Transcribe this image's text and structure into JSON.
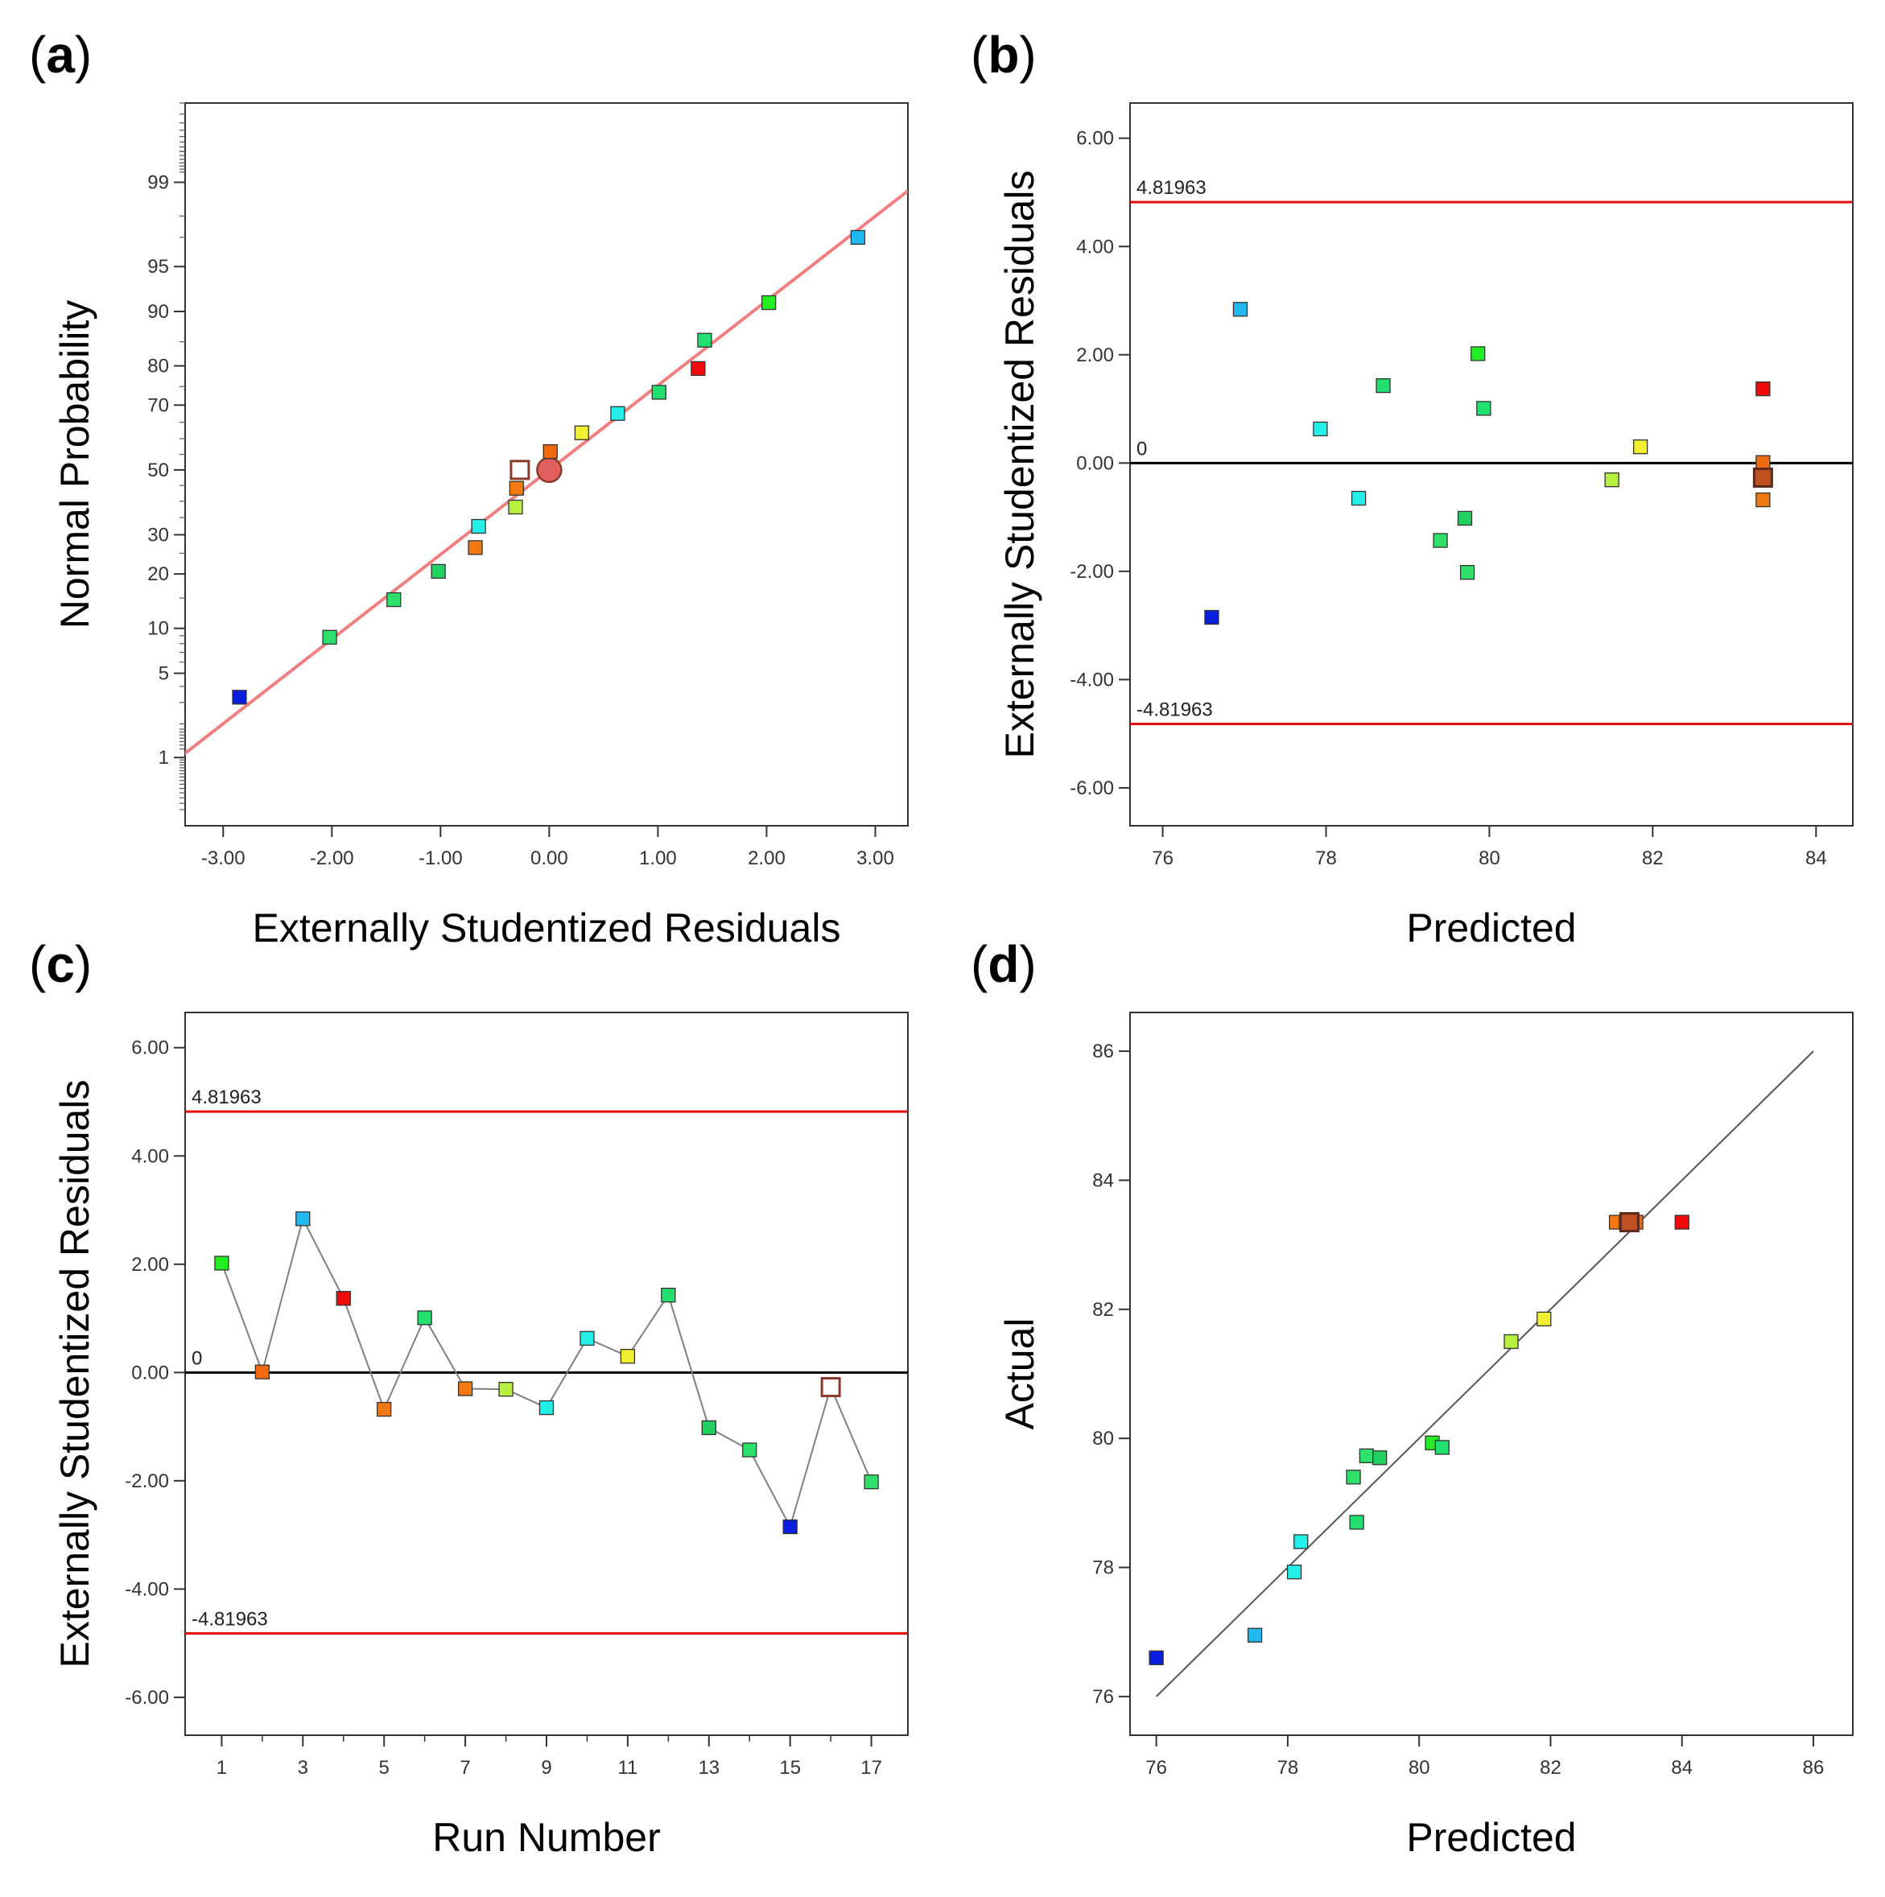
{
  "figure": {
    "panels": [
      "a",
      "b",
      "c",
      "d"
    ]
  },
  "chart_data": [
    {
      "id": "a",
      "type": "scatter",
      "panel_label": "a",
      "title": "",
      "xlabel": "Externally Studentized Residuals",
      "ylabel": "Normal Probability",
      "xlim": [
        -3.35,
        3.3
      ],
      "ylim_probability": [
        0.2,
        99.85
      ],
      "y_scale": "normal-probability",
      "xticks": [
        -3,
        -2,
        -1,
        0,
        1,
        2,
        3
      ],
      "xtick_labels": [
        "-3.00",
        "-2.00",
        "-1.00",
        "0.00",
        "1.00",
        "2.00",
        "3.00"
      ],
      "yticks": [
        1,
        5,
        10,
        20,
        30,
        50,
        70,
        80,
        90,
        95,
        99
      ],
      "ytick_labels": [
        "1",
        "5",
        "10",
        "20",
        "30",
        "50",
        "70",
        "80",
        "90",
        "95",
        "99"
      ],
      "fit_line": {
        "x": [
          -3.4,
          3.3
        ],
        "y": [
          1.0,
          98.8
        ],
        "color": "#f08080"
      },
      "points": [
        {
          "x": -2.85,
          "y": 3.3,
          "color": "#0a1ee0"
        },
        {
          "x": -2.02,
          "y": 8.8,
          "color": "#2ee06a"
        },
        {
          "x": -1.43,
          "y": 14.7,
          "color": "#2ee06a"
        },
        {
          "x": -1.02,
          "y": 20.6,
          "color": "#22d060"
        },
        {
          "x": -0.68,
          "y": 26.5,
          "color": "#f07a10"
        },
        {
          "x": -0.65,
          "y": 32.4,
          "color": "#22f0e8"
        },
        {
          "x": -0.31,
          "y": 38.2,
          "color": "#b8f040"
        },
        {
          "x": -0.3,
          "y": 44.1,
          "color": "#f07a10"
        },
        {
          "x": -0.27,
          "y": 50.0,
          "color": "#ffffff",
          "stroke": "#8b3a2a",
          "size": "large-square"
        },
        {
          "x": 0.0,
          "y": 50.0,
          "color": "#e06060",
          "stroke": "#8b3a2a",
          "size": "circle"
        },
        {
          "x": 0.01,
          "y": 55.9,
          "color": "#f06a10"
        },
        {
          "x": 0.3,
          "y": 61.8,
          "color": "#f0f030"
        },
        {
          "x": 0.63,
          "y": 67.6,
          "color": "#22f0e8"
        },
        {
          "x": 1.01,
          "y": 73.5,
          "color": "#22e070"
        },
        {
          "x": 1.37,
          "y": 79.4,
          "color": "#f00a0a"
        },
        {
          "x": 1.43,
          "y": 85.3,
          "color": "#22e070"
        },
        {
          "x": 2.02,
          "y": 91.2,
          "color": "#22ee22"
        },
        {
          "x": 2.84,
          "y": 97.0,
          "color": "#22b8f0"
        }
      ]
    },
    {
      "id": "b",
      "type": "scatter",
      "panel_label": "b",
      "title": "",
      "xlabel": "Predicted",
      "ylabel": "Externally Studentized Residuals",
      "xlim": [
        75.6,
        84.45
      ],
      "ylim": [
        -6.7,
        6.65
      ],
      "xticks": [
        76,
        78,
        80,
        82,
        84
      ],
      "xtick_labels": [
        "76",
        "78",
        "80",
        "82",
        "84"
      ],
      "yticks": [
        -6,
        -4,
        -2,
        0,
        2,
        4,
        6
      ],
      "ytick_labels": [
        "-6.00",
        "-4.00",
        "-2.00",
        "0.00",
        "2.00",
        "4.00",
        "6.00"
      ],
      "reference_lines": [
        {
          "y": 4.81963,
          "label": "4.81963",
          "color": "#e01010"
        },
        {
          "y": 0,
          "label": "0",
          "color": "#000000"
        },
        {
          "y": -4.81963,
          "label": "-4.81963",
          "color": "#e01010"
        }
      ],
      "points": [
        {
          "x": 76.6,
          "y": -2.85,
          "color": "#0a1ee0"
        },
        {
          "x": 76.95,
          "y": 2.84,
          "color": "#22b8f0"
        },
        {
          "x": 77.93,
          "y": 0.63,
          "color": "#22f0e8"
        },
        {
          "x": 78.4,
          "y": -0.65,
          "color": "#22f0e8"
        },
        {
          "x": 78.7,
          "y": 1.43,
          "color": "#22e070"
        },
        {
          "x": 79.4,
          "y": -1.43,
          "color": "#2ee06a"
        },
        {
          "x": 79.7,
          "y": -1.02,
          "color": "#22d060"
        },
        {
          "x": 79.73,
          "y": -2.02,
          "color": "#2ee06a"
        },
        {
          "x": 79.86,
          "y": 2.02,
          "color": "#22ee22"
        },
        {
          "x": 79.93,
          "y": 1.01,
          "color": "#22e070"
        },
        {
          "x": 81.5,
          "y": -0.31,
          "color": "#b8f040"
        },
        {
          "x": 81.85,
          "y": 0.3,
          "color": "#f0f030"
        },
        {
          "x": 83.35,
          "y": 1.37,
          "color": "#f00a0a"
        },
        {
          "x": 83.35,
          "y": 0.01,
          "color": "#f06a10"
        },
        {
          "x": 83.35,
          "y": -0.3,
          "color": "#f07a10"
        },
        {
          "x": 83.35,
          "y": -0.27,
          "color": "#c05020",
          "stroke": "#5a2a1a",
          "size": "large-square"
        },
        {
          "x": 83.35,
          "y": -0.68,
          "color": "#f07a10"
        }
      ]
    },
    {
      "id": "c",
      "type": "line",
      "panel_label": "c",
      "title": "",
      "xlabel": "Run Number",
      "ylabel": "Externally Studentized Residuals",
      "xlim": [
        0.1,
        17.9
      ],
      "ylim": [
        -6.7,
        6.65
      ],
      "xticks": [
        1,
        3,
        5,
        7,
        9,
        11,
        13,
        15,
        17
      ],
      "xtick_labels": [
        "1",
        "3",
        "5",
        "7",
        "9",
        "11",
        "13",
        "15",
        "17"
      ],
      "minor_xticks": [
        2,
        4,
        6,
        8,
        10,
        12,
        14,
        16
      ],
      "yticks": [
        -6,
        -4,
        -2,
        0,
        2,
        4,
        6
      ],
      "ytick_labels": [
        "-6.00",
        "-4.00",
        "-2.00",
        "0.00",
        "2.00",
        "4.00",
        "6.00"
      ],
      "reference_lines": [
        {
          "y": 4.81963,
          "label": "4.81963",
          "color": "#e01010"
        },
        {
          "y": 0,
          "label": "0",
          "color": "#000000"
        },
        {
          "y": -4.81963,
          "label": "-4.81963",
          "color": "#e01010"
        }
      ],
      "line_color": "#808080",
      "points": [
        {
          "x": 1,
          "y": 2.02,
          "color": "#22ee22"
        },
        {
          "x": 2,
          "y": 0.01,
          "color": "#f06a10"
        },
        {
          "x": 3,
          "y": 2.84,
          "color": "#22b8f0"
        },
        {
          "x": 4,
          "y": 1.37,
          "color": "#f00a0a"
        },
        {
          "x": 5,
          "y": -0.68,
          "color": "#f07a10"
        },
        {
          "x": 6,
          "y": 1.01,
          "color": "#22e070"
        },
        {
          "x": 7,
          "y": -0.3,
          "color": "#f07a10"
        },
        {
          "x": 8,
          "y": -0.31,
          "color": "#b8f040"
        },
        {
          "x": 9,
          "y": -0.65,
          "color": "#22f0e8"
        },
        {
          "x": 10,
          "y": 0.63,
          "color": "#22f0e8"
        },
        {
          "x": 11,
          "y": 0.3,
          "color": "#f0f030"
        },
        {
          "x": 12,
          "y": 1.43,
          "color": "#22e070"
        },
        {
          "x": 13,
          "y": -1.02,
          "color": "#22d060"
        },
        {
          "x": 14,
          "y": -1.43,
          "color": "#2ee06a"
        },
        {
          "x": 15,
          "y": -2.85,
          "color": "#0a1ee0"
        },
        {
          "x": 16,
          "y": -0.27,
          "color": "#ffffff",
          "stroke": "#8b3a2a",
          "size": "large-square"
        },
        {
          "x": 17,
          "y": -2.02,
          "color": "#2ee06a"
        }
      ]
    },
    {
      "id": "d",
      "type": "scatter",
      "panel_label": "d",
      "title": "",
      "xlabel": "Predicted",
      "ylabel": "Actual",
      "xlim": [
        75.6,
        86.6
      ],
      "ylim": [
        75.4,
        86.6
      ],
      "xticks": [
        76,
        78,
        80,
        82,
        84,
        86
      ],
      "xtick_labels": [
        "76",
        "78",
        "80",
        "82",
        "84",
        "86"
      ],
      "yticks": [
        76,
        78,
        80,
        82,
        84,
        86
      ],
      "ytick_labels": [
        "76",
        "78",
        "80",
        "82",
        "84",
        "86"
      ],
      "fit_line": {
        "x": [
          76,
          86
        ],
        "y": [
          76,
          86
        ],
        "color": "#555555"
      },
      "points": [
        {
          "x": 76.0,
          "y": 76.6,
          "color": "#0a1ee0"
        },
        {
          "x": 77.5,
          "y": 76.95,
          "color": "#22b8f0"
        },
        {
          "x": 78.1,
          "y": 77.93,
          "color": "#22f0e8"
        },
        {
          "x": 78.2,
          "y": 78.4,
          "color": "#22f0e8"
        },
        {
          "x": 79.05,
          "y": 78.7,
          "color": "#22e070"
        },
        {
          "x": 79.0,
          "y": 79.4,
          "color": "#2ee06a"
        },
        {
          "x": 79.2,
          "y": 79.73,
          "color": "#2ee06a"
        },
        {
          "x": 79.4,
          "y": 79.7,
          "color": "#22d060"
        },
        {
          "x": 80.2,
          "y": 79.93,
          "color": "#22ee22"
        },
        {
          "x": 80.35,
          "y": 79.86,
          "color": "#22e070"
        },
        {
          "x": 81.4,
          "y": 81.5,
          "color": "#b8f040"
        },
        {
          "x": 81.9,
          "y": 81.85,
          "color": "#f0f030"
        },
        {
          "x": 83.0,
          "y": 83.35,
          "color": "#f07a10"
        },
        {
          "x": 83.15,
          "y": 83.35,
          "color": "#f07a10"
        },
        {
          "x": 83.3,
          "y": 83.35,
          "color": "#f06a10"
        },
        {
          "x": 83.2,
          "y": 83.35,
          "color": "#c05020",
          "stroke": "#5a2a1a",
          "size": "large-square"
        },
        {
          "x": 84.0,
          "y": 83.35,
          "color": "#f00a0a"
        }
      ]
    }
  ]
}
